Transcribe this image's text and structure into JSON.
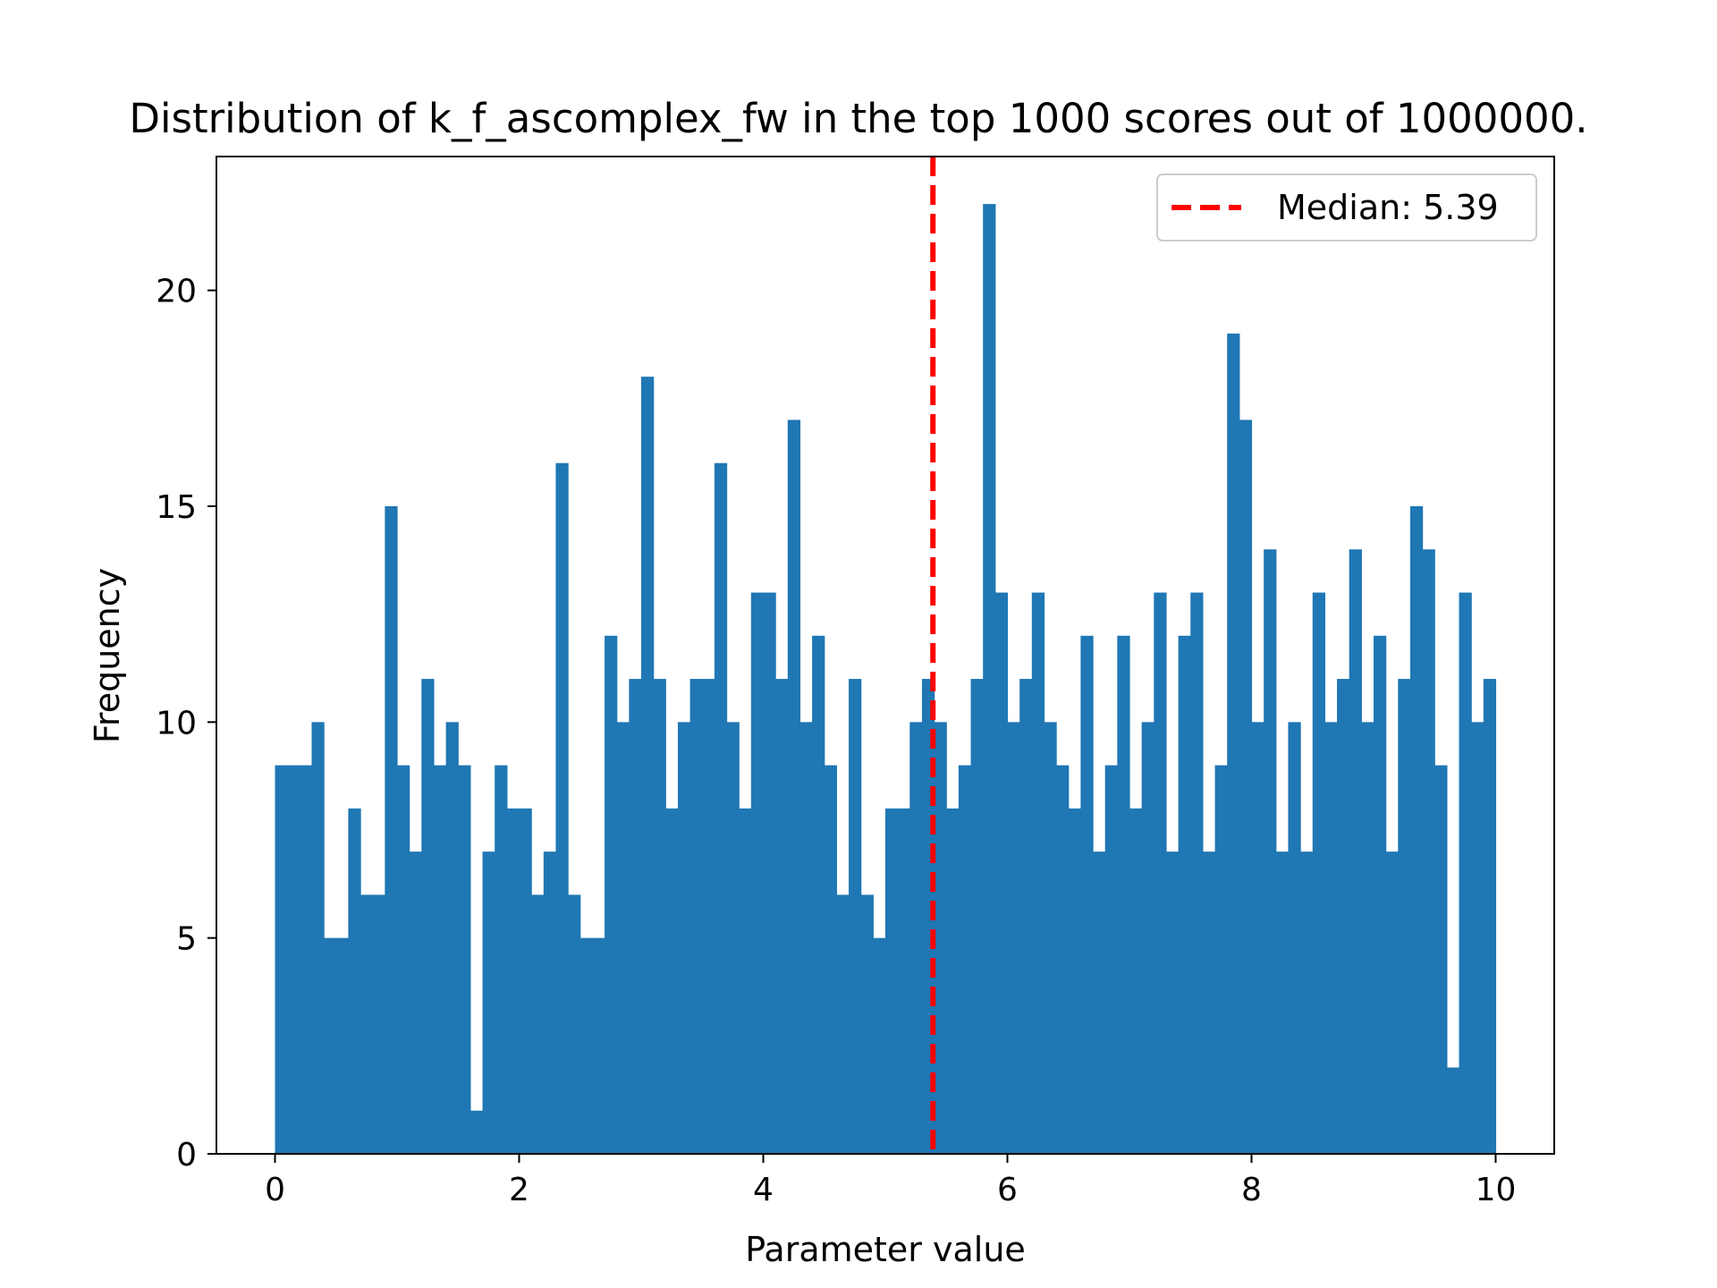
{
  "chart_data": {
    "type": "bar",
    "title": "Distribution of k_f_ascomplex_fw in the top 1000 scores out of 1000000.",
    "xlabel": "Parameter value",
    "ylabel": "Frequency",
    "xlim": [
      -0.48,
      10.48
    ],
    "ylim": [
      0,
      23.1
    ],
    "x_ticks": [
      0,
      2,
      4,
      6,
      8,
      10
    ],
    "x_tick_labels": [
      "0",
      "2",
      "4",
      "6",
      "8",
      "10"
    ],
    "y_ticks": [
      0,
      5,
      10,
      15,
      20
    ],
    "y_tick_labels": [
      "0",
      "5",
      "10",
      "15",
      "20"
    ],
    "bin_start": 0,
    "bin_end": 10,
    "bin_width": 0.1,
    "values": [
      9,
      9,
      9,
      10,
      5,
      5,
      8,
      6,
      6,
      15,
      9,
      7,
      11,
      9,
      10,
      9,
      1,
      7,
      9,
      8,
      8,
      6,
      7,
      16,
      6,
      5,
      5,
      12,
      10,
      11,
      18,
      11,
      8,
      10,
      11,
      11,
      16,
      10,
      8,
      13,
      13,
      11,
      17,
      10,
      12,
      9,
      6,
      11,
      6,
      5,
      8,
      8,
      10,
      11,
      10,
      8,
      9,
      11,
      22,
      13,
      10,
      11,
      13,
      10,
      9,
      8,
      12,
      7,
      9,
      12,
      8,
      10,
      13,
      7,
      12,
      13,
      7,
      9,
      19,
      17,
      10,
      14,
      7,
      10,
      7,
      13,
      10,
      11,
      14,
      10,
      12,
      7,
      11,
      15,
      14,
      9,
      2,
      13,
      10,
      11
    ],
    "bar_color": "#1f77b4",
    "median": 5.39,
    "median_color": "#ff0000",
    "legend": {
      "location": "top-right",
      "entries": [
        {
          "label": "Median: 5.39",
          "style": "dashed",
          "color": "#ff0000"
        }
      ]
    },
    "grid": false
  }
}
